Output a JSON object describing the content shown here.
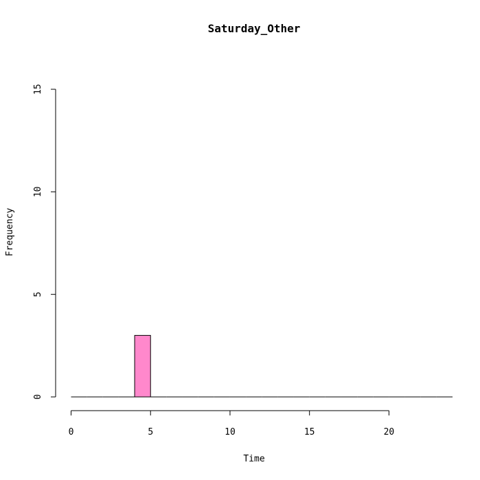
{
  "chart_data": {
    "type": "bar",
    "title": "Saturday_Other",
    "xlabel": "Time",
    "ylabel": "Frequency",
    "bin_width": 1,
    "bins": [
      {
        "start": 0,
        "end": 1,
        "count": 0
      },
      {
        "start": 1,
        "end": 2,
        "count": 0
      },
      {
        "start": 2,
        "end": 3,
        "count": 0
      },
      {
        "start": 3,
        "end": 4,
        "count": 0
      },
      {
        "start": 4,
        "end": 5,
        "count": 3
      },
      {
        "start": 5,
        "end": 6,
        "count": 0
      },
      {
        "start": 6,
        "end": 7,
        "count": 0
      },
      {
        "start": 7,
        "end": 8,
        "count": 0
      },
      {
        "start": 8,
        "end": 9,
        "count": 0
      },
      {
        "start": 9,
        "end": 10,
        "count": 0
      },
      {
        "start": 10,
        "end": 11,
        "count": 0
      },
      {
        "start": 11,
        "end": 12,
        "count": 0
      },
      {
        "start": 12,
        "end": 13,
        "count": 0
      },
      {
        "start": 13,
        "end": 14,
        "count": 0
      },
      {
        "start": 14,
        "end": 15,
        "count": 0
      },
      {
        "start": 15,
        "end": 16,
        "count": 0
      },
      {
        "start": 16,
        "end": 17,
        "count": 0
      },
      {
        "start": 17,
        "end": 18,
        "count": 0
      },
      {
        "start": 18,
        "end": 19,
        "count": 0
      },
      {
        "start": 19,
        "end": 20,
        "count": 0
      },
      {
        "start": 20,
        "end": 21,
        "count": 0
      },
      {
        "start": 21,
        "end": 22,
        "count": 0
      },
      {
        "start": 22,
        "end": 23,
        "count": 0
      },
      {
        "start": 23,
        "end": 24,
        "count": 0
      }
    ],
    "xlim": [
      0,
      24
    ],
    "ylim": [
      0,
      15
    ],
    "x_ticks": [
      0,
      5,
      10,
      15,
      20
    ],
    "y_ticks": [
      0,
      5,
      10,
      15
    ],
    "bar_color": "#ff88cc",
    "bar_edge_color": "#000000",
    "grid": false
  }
}
